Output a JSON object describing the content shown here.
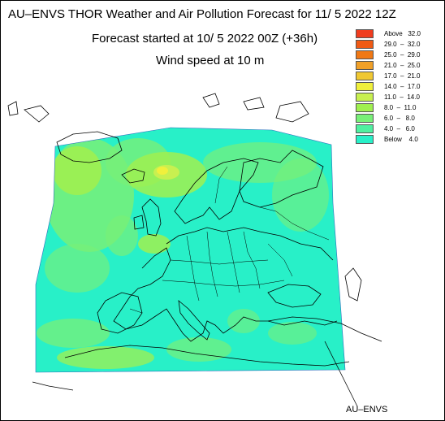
{
  "header": {
    "title": "AU–ENVS THOR Weather and Air Pollution Forecast for 11/ 5 2022  12Z",
    "subtitle": "Forecast started at 10/ 5 2022  00Z (+36h)",
    "variable": "Wind speed at 10 m"
  },
  "legend": [
    {
      "label": "Above   32.0",
      "color": "#f03c1e"
    },
    {
      "label": "29.0  –  32.0",
      "color": "#f05a14"
    },
    {
      "label": "25.0  –  29.0",
      "color": "#f07814"
    },
    {
      "label": "21.0  –  25.0",
      "color": "#f0a028"
    },
    {
      "label": "17.0  –  21.0",
      "color": "#f0c832"
    },
    {
      "label": "14.0  –  17.0",
      "color": "#f0f03c"
    },
    {
      "label": "11.0  –  14.0",
      "color": "#c8f050"
    },
    {
      "label": "8.0  –  11.0",
      "color": "#a0f050"
    },
    {
      "label": "6.0  –   8.0",
      "color": "#78f078"
    },
    {
      "label": "4.0  –   6.0",
      "color": "#50f0a0"
    },
    {
      "label": "Below    4.0",
      "color": "#28f0c8"
    }
  ],
  "footer": {
    "brand": "AU–ENVS"
  }
}
